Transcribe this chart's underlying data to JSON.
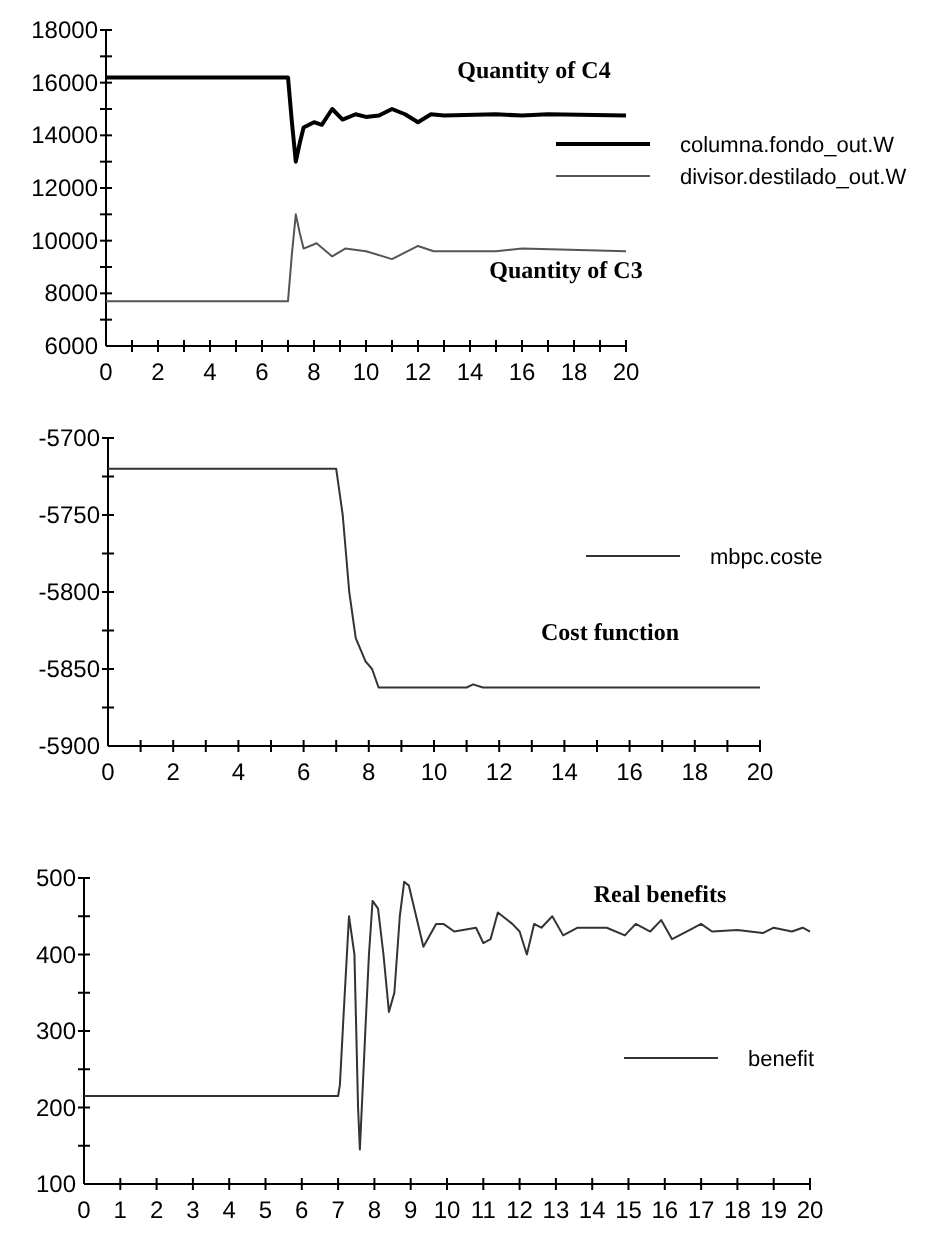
{
  "chart_data": [
    {
      "type": "line",
      "legend": "right",
      "annotations": [
        "Quantity of C4",
        "Quantity of C3"
      ],
      "xlim": [
        0,
        20
      ],
      "xticks": [
        0,
        {
          "value": 1,
          "label": null
        },
        2,
        {
          "value": 3,
          "label": null
        },
        4,
        {
          "value": 5,
          "label": null
        },
        6,
        {
          "value": 7,
          "label": null
        },
        8,
        {
          "value": 9,
          "label": null
        },
        10,
        {
          "value": 11,
          "label": null
        },
        12,
        {
          "value": 13,
          "label": null
        },
        14,
        {
          "value": 15,
          "label": null
        },
        16,
        {
          "value": 17,
          "label": null
        },
        18,
        {
          "value": 19,
          "label": null
        },
        20
      ],
      "ylim": [
        6000,
        18000
      ],
      "yticks": [
        6000,
        {
          "value": 7000,
          "label": null
        },
        8000,
        {
          "value": 9000,
          "label": null
        },
        10000,
        {
          "value": 11000,
          "label": null
        },
        12000,
        {
          "value": 13000,
          "label": null
        },
        14000,
        {
          "value": 15000,
          "label": null
        },
        16000,
        {
          "value": 17000,
          "label": null
        },
        18000
      ],
      "series": [
        {
          "name": "columna.fondo_out.W",
          "color": "#000000",
          "x": [
            0,
            7.0,
            7.15,
            7.3,
            7.45,
            7.6,
            8.0,
            8.3,
            8.7,
            9.1,
            9.6,
            10,
            10.5,
            11.0,
            11.5,
            12,
            12.5,
            13,
            15,
            16,
            17,
            20
          ],
          "values": [
            16200,
            16200,
            14500,
            13000,
            13700,
            14300,
            14500,
            14400,
            15000,
            14600,
            14800,
            14700,
            14750,
            15000,
            14800,
            14500,
            14800,
            14750,
            14800,
            14750,
            14800,
            14750
          ]
        },
        {
          "name": "divisor.destilado_out.W",
          "color": "#555555",
          "x": [
            0,
            7.0,
            7.15,
            7.3,
            7.45,
            7.6,
            8.1,
            8.7,
            9.2,
            10,
            11,
            12,
            12.6,
            15,
            16,
            20
          ],
          "values": [
            7700,
            7700,
            9500,
            11000,
            10300,
            9700,
            9900,
            9400,
            9700,
            9600,
            9300,
            9800,
            9600,
            9600,
            9700,
            9600
          ]
        }
      ]
    },
    {
      "type": "line",
      "legend": "right",
      "annotations": [
        "Cost function"
      ],
      "xlim": [
        0,
        20
      ],
      "xticks": [
        0,
        {
          "value": 1,
          "label": null
        },
        2,
        {
          "value": 3,
          "label": null
        },
        4,
        {
          "value": 5,
          "label": null
        },
        6,
        {
          "value": 7,
          "label": null
        },
        8,
        {
          "value": 9,
          "label": null
        },
        10,
        {
          "value": 11,
          "label": null
        },
        12,
        {
          "value": 13,
          "label": null
        },
        14,
        {
          "value": 15,
          "label": null
        },
        16,
        {
          "value": 17,
          "label": null
        },
        18,
        {
          "value": 19,
          "label": null
        },
        20
      ],
      "ylim": [
        -5900,
        -5700
      ],
      "yticks": [
        -5900,
        {
          "value": -5875,
          "label": null
        },
        -5850,
        {
          "value": -5825,
          "label": null
        },
        -5800,
        {
          "value": -5775,
          "label": null
        },
        -5750,
        {
          "value": -5725,
          "label": null
        },
        -5700
      ],
      "series": [
        {
          "name": "mbpc.coste",
          "color": "#333333",
          "x": [
            0,
            7.0,
            7.2,
            7.4,
            7.6,
            7.9,
            8.1,
            8.3,
            11.0,
            11.2,
            11.5,
            20
          ],
          "values": [
            -5720,
            -5720,
            -5750,
            -5800,
            -5830,
            -5845,
            -5850,
            -5862,
            -5862,
            -5860,
            -5862,
            -5862
          ]
        }
      ]
    },
    {
      "type": "line",
      "legend": "right",
      "annotations": [
        "Real benefits"
      ],
      "xlim": [
        0,
        20
      ],
      "xticks": [
        0,
        1,
        2,
        3,
        4,
        5,
        6,
        7,
        8,
        9,
        10,
        11,
        12,
        13,
        14,
        15,
        16,
        17,
        18,
        19,
        20
      ],
      "ylim": [
        100,
        500
      ],
      "yticks": [
        100,
        {
          "value": 150,
          "label": null
        },
        200,
        {
          "value": 250,
          "label": null
        },
        300,
        {
          "value": 350,
          "label": null
        },
        400,
        {
          "value": 450,
          "label": null
        },
        500
      ],
      "series": [
        {
          "name": "benefit",
          "color": "#333333",
          "x": [
            0,
            7.0,
            7.05,
            7.15,
            7.3,
            7.45,
            7.55,
            7.6,
            7.75,
            7.85,
            7.95,
            8.1,
            8.25,
            8.4,
            8.55,
            8.7,
            8.82,
            8.95,
            9.15,
            9.35,
            9.7,
            9.9,
            10.2,
            10.8,
            11.0,
            11.2,
            11.4,
            11.8,
            12.0,
            12.2,
            12.4,
            12.6,
            12.9,
            13.2,
            13.6,
            14.4,
            14.9,
            15.2,
            15.6,
            15.9,
            16.2,
            16.6,
            17.0,
            17.3,
            18.0,
            18.7,
            19.0,
            19.5,
            19.8,
            20
          ],
          "values": [
            215,
            215,
            230,
            320,
            450,
            400,
            200,
            145,
            300,
            400,
            470,
            460,
            400,
            325,
            350,
            450,
            495,
            490,
            450,
            410,
            440,
            440,
            430,
            435,
            415,
            420,
            455,
            440,
            430,
            400,
            440,
            435,
            450,
            425,
            435,
            435,
            425,
            440,
            430,
            445,
            420,
            430,
            440,
            430,
            432,
            428,
            435,
            430,
            435,
            430
          ]
        }
      ]
    }
  ]
}
